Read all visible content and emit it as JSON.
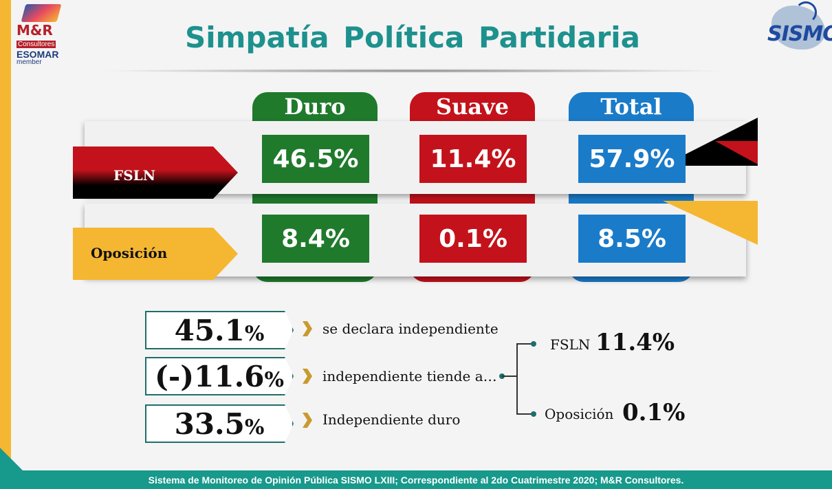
{
  "logos": {
    "mr_title": "M&R",
    "mr_sub": "Consultores",
    "mr_esomar": "ESOMAR",
    "mr_member": "member",
    "sismo": "SISMO"
  },
  "title": "Simpatía  Política Partidaria",
  "columns": {
    "duro": "Duro",
    "suave": "Suave",
    "total": "Total"
  },
  "rows": [
    {
      "label": "FSLN",
      "duro": "46.5%",
      "suave": "11.4%",
      "total": "57.9%"
    },
    {
      "label": "Oposición",
      "duro": "8.4%",
      "suave": "0.1%",
      "total": "8.5%"
    }
  ],
  "independents": [
    {
      "num": "45.1",
      "pct": "%",
      "text": "se declara independiente"
    },
    {
      "num": "(-)11.6",
      "pct": "%",
      "text": "independiente tiende a…"
    },
    {
      "num": "33.5",
      "pct": "%",
      "text": "Independiente duro"
    }
  ],
  "leaning": [
    {
      "label": "FSLN",
      "value": "11.4%"
    },
    {
      "label": "Oposición",
      "value": "0.1%"
    }
  ],
  "footer": "Sistema de Monitoreo de Opinión Pública SISMO LXIII; Correspondiente al 2do Cuatrimestre 2020; M&R Consultores.",
  "colors": {
    "teal": "#17998c",
    "green": "#1f7a2c",
    "red": "#c3121b",
    "blue": "#1a7bc9",
    "yellow": "#f5b731"
  }
}
